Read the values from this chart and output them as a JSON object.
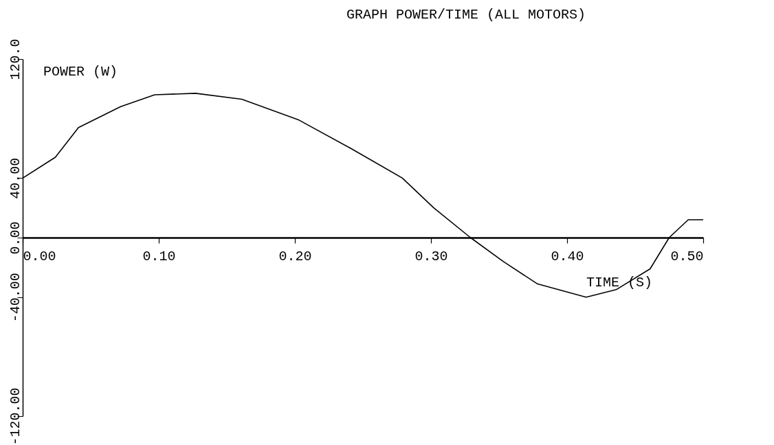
{
  "chart_data": {
    "type": "line",
    "title": "GRAPH POWER/TIME   (ALL MOTORS)",
    "xlabel": "TIME (S)",
    "ylabel": "POWER (W)",
    "x": [
      0,
      0.024,
      0.041,
      0.072,
      0.097,
      0.127,
      0.161,
      0.203,
      0.241,
      0.279,
      0.302,
      0.329,
      0.353,
      0.378,
      0.414,
      0.436,
      0.461,
      0.475,
      0.489,
      0.5
    ],
    "series": [
      {
        "color": "#000000",
        "values": [
          40,
          54,
          74,
          88,
          96,
          97,
          93,
          79,
          60,
          40,
          20,
          0,
          -16,
          -31,
          -40,
          -35,
          -21,
          0,
          12,
          12
        ]
      }
    ],
    "xlim": [
      0,
      0.5
    ],
    "ylim": [
      -120,
      120
    ],
    "xticks": [
      {
        "value": 0,
        "label": "0.00"
      },
      {
        "value": 0.1,
        "label": "0.10"
      },
      {
        "value": 0.2,
        "label": "0.20"
      },
      {
        "value": 0.3,
        "label": "0.30"
      },
      {
        "value": 0.4,
        "label": "0.40"
      },
      {
        "value": 0.5,
        "label": "0.50"
      }
    ],
    "yticks": [
      {
        "value": -120,
        "label": "-120.00"
      },
      {
        "value": -40,
        "label": "-40.00"
      },
      {
        "value": 0,
        "label": "0.00"
      },
      {
        "value": 40,
        "label": "40.00"
      },
      {
        "value": 120,
        "label": "120.0"
      }
    ],
    "grid": false,
    "legend": false,
    "marker": "none",
    "line_style": "solid"
  }
}
